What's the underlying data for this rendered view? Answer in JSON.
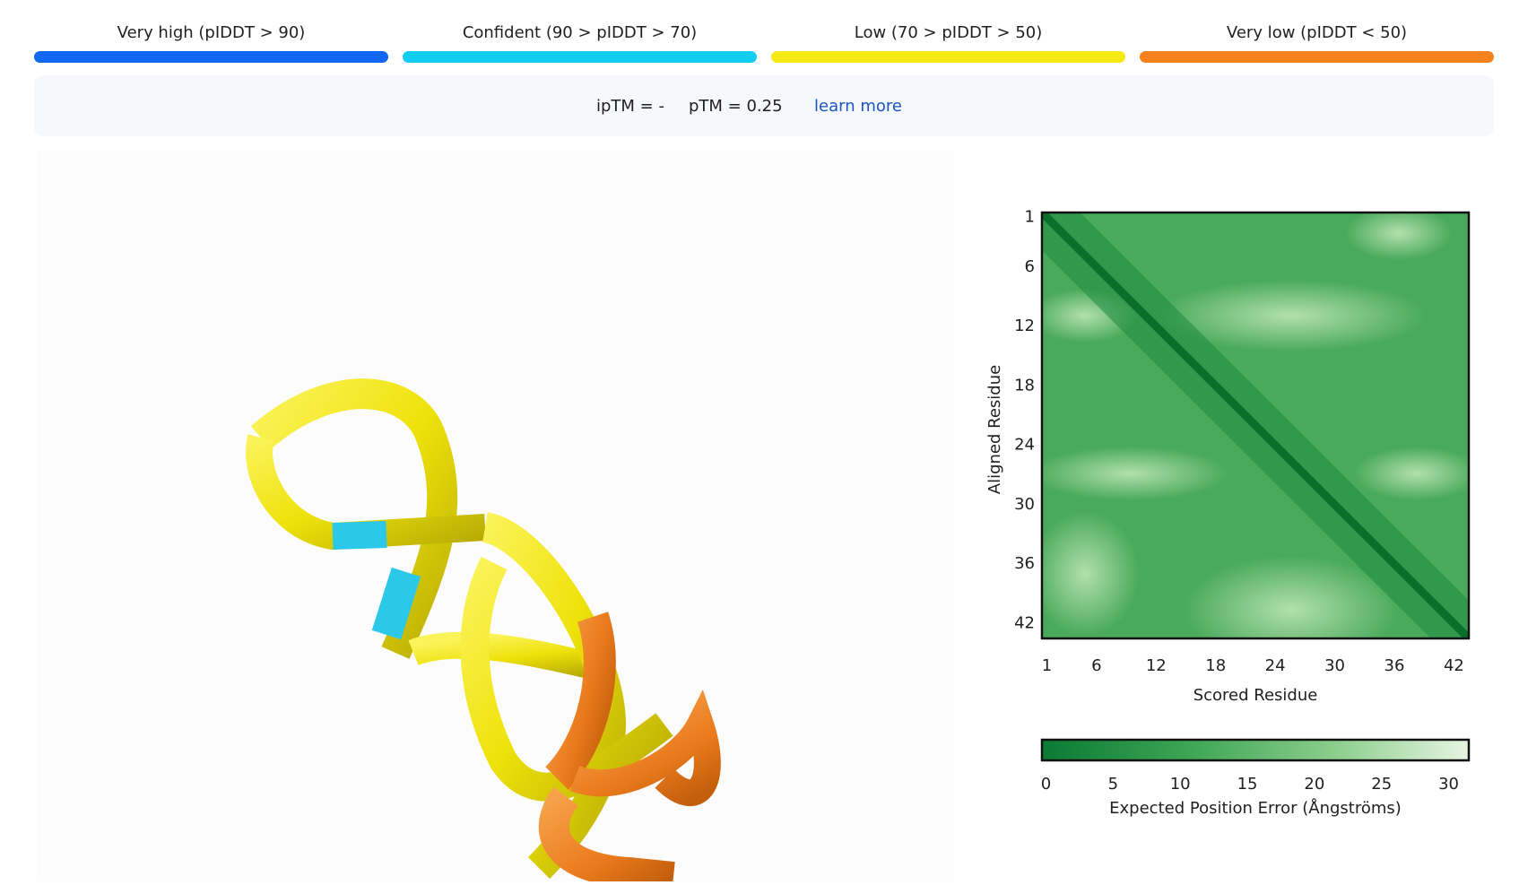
{
  "legend": [
    {
      "label": "Very high (pIDDT > 90)",
      "color": "#1268f3"
    },
    {
      "label": "Confident (90 > pIDDT > 70)",
      "color": "#12cdf0"
    },
    {
      "label": "Low (70 > pIDDT > 50)",
      "color": "#f5ea14"
    },
    {
      "label": "Very low (pIDDT < 50)",
      "color": "#f5821f"
    }
  ],
  "metrics": {
    "iptm": "ipTM = -",
    "ptm": "pTM = 0.25",
    "link": "learn more"
  },
  "pae": {
    "y_label": "Aligned Residue",
    "x_label": "Scored Residue",
    "xlim": [
      0.5,
      43.5
    ],
    "ylim": [
      0.5,
      43.5
    ],
    "xticks": [
      1,
      6,
      12,
      18,
      24,
      30,
      36,
      42
    ],
    "yticks": [
      1,
      6,
      12,
      18,
      24,
      30,
      36,
      42
    ],
    "colorbar": {
      "label": "Expected Position Error (Ångströms)",
      "lim": [
        -0.3,
        31.5
      ],
      "ticks": [
        0,
        5,
        10,
        15,
        20,
        25,
        30
      ]
    }
  }
}
